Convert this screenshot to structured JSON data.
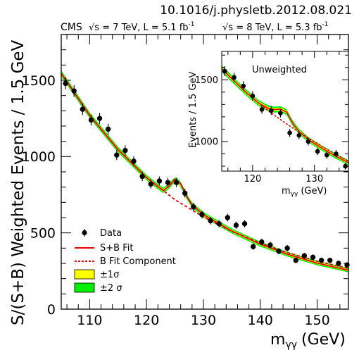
{
  "header": {
    "doi": "10.1016/j.physletb.2012.08.021",
    "experiment": "CMS",
    "energy_7": "√s = 7 TeV, L = 5.1 fb",
    "energy_8": "√s = 8 TeV, L = 5.3 fb",
    "lumi_exp": "-1"
  },
  "chart_data": [
    {
      "type": "scatter",
      "panel": "main",
      "xlabel": "m",
      "xlabel_sub": "γγ",
      "xlabel_unit": "(GeV)",
      "ylabel": "S/(S+B) Weighted Events / 1.5 GeV",
      "xlim": [
        105,
        155.5
      ],
      "ylim": [
        0,
        1800
      ],
      "xticks": [
        110,
        120,
        130,
        140,
        150
      ],
      "yticks": [
        0,
        500,
        1000,
        1500
      ],
      "grid": false,
      "legend_position": "bottom-left",
      "legend": [
        {
          "label": "Data",
          "kind": "marker"
        },
        {
          "label": "S+B Fit",
          "kind": "solid-line",
          "color": "#e60000"
        },
        {
          "label": "B Fit Component",
          "kind": "dashed-line",
          "color": "#e60000"
        },
        {
          "label": "±1σ",
          "kind": "band",
          "color": "#ffff00"
        },
        {
          "label": "±2 σ",
          "kind": "band",
          "color": "#00ee00"
        }
      ],
      "series": [
        {
          "name": "Data",
          "x": [
            105.75,
            107.25,
            108.75,
            110.25,
            111.75,
            113.25,
            114.75,
            116.25,
            117.75,
            119.25,
            120.75,
            122.25,
            123.75,
            125.25,
            126.75,
            128.25,
            129.75,
            131.25,
            132.75,
            134.25,
            135.75,
            137.25,
            138.75,
            140.25,
            141.75,
            143.25,
            144.75,
            146.25,
            147.75,
            149.25,
            150.75,
            152.25,
            153.75,
            155.25
          ],
          "y": [
            1480,
            1430,
            1310,
            1240,
            1250,
            1180,
            1010,
            1040,
            970,
            870,
            820,
            840,
            830,
            830,
            760,
            670,
            620,
            580,
            560,
            600,
            550,
            560,
            410,
            440,
            420,
            380,
            400,
            320,
            350,
            340,
            320,
            320,
            300,
            290
          ],
          "yerr": [
            40,
            38,
            37,
            36,
            36,
            35,
            33,
            33,
            32,
            31,
            30,
            30,
            30,
            30,
            29,
            27,
            26,
            25,
            24,
            25,
            24,
            24,
            21,
            22,
            21,
            20,
            21,
            18,
            19,
            19,
            18,
            18,
            18,
            17
          ]
        },
        {
          "name": "S+B Fit",
          "x": [
            105,
            110,
            115,
            120,
            122,
            123,
            124,
            125,
            126,
            127,
            128,
            130,
            135,
            140,
            145,
            150,
            155.5
          ],
          "y": [
            1545,
            1270,
            1045,
            862,
            803,
            778,
            808,
            852,
            822,
            742,
            683,
            619,
            512,
            426,
            357,
            302,
            255
          ]
        },
        {
          "name": "B Fit Component",
          "x": [
            105,
            110,
            115,
            120,
            125,
            130,
            135,
            140,
            145,
            150,
            155.5
          ],
          "y": [
            1545,
            1270,
            1045,
            862,
            717,
            604,
            510,
            433,
            368,
            315,
            268
          ]
        }
      ]
    },
    {
      "type": "scatter",
      "panel": "inset",
      "title": "Unweighted",
      "xlabel": "m",
      "xlabel_sub": "γγ",
      "xlabel_unit": "(GeV)",
      "ylabel": "Events / 1.5 GeV",
      "xlim": [
        115,
        135.5
      ],
      "ylim": [
        760,
        1730
      ],
      "xticks": [
        120,
        130
      ],
      "yticks": [
        1000,
        1500
      ],
      "series": [
        {
          "name": "Data",
          "x": [
            115.5,
            117,
            118.5,
            120,
            121.5,
            123,
            124.5,
            126,
            127.5,
            129,
            130.5,
            132,
            133.5,
            135
          ],
          "y": [
            1570,
            1520,
            1450,
            1370,
            1260,
            1250,
            1230,
            1070,
            1050,
            1000,
            920,
            890,
            900,
            800
          ],
          "yerr": [
            40,
            39,
            38,
            37,
            35,
            35,
            35,
            33,
            32,
            32,
            30,
            30,
            30,
            28
          ]
        },
        {
          "name": "S+B Fit",
          "x": [
            115,
            117,
            119,
            121,
            122.5,
            123.5,
            124.5,
            125.5,
            126.5,
            127.5,
            129,
            131,
            133,
            135.5
          ],
          "y": [
            1590,
            1490,
            1395,
            1310,
            1270,
            1258,
            1262,
            1238,
            1146,
            1082,
            1015,
            952,
            893,
            828
          ],
          "band1": [
            14,
            13,
            12,
            12,
            12,
            12,
            12,
            12,
            11,
            11,
            11,
            11,
            10,
            10
          ],
          "band2": [
            28,
            26,
            25,
            24,
            24,
            24,
            24,
            23,
            22,
            22,
            21,
            21,
            20,
            20
          ]
        },
        {
          "name": "B Fit Component",
          "x": [
            115,
            117,
            119,
            121,
            123,
            125,
            127,
            129,
            131,
            133,
            135.5
          ],
          "y": [
            1590,
            1490,
            1395,
            1310,
            1232,
            1160,
            1092,
            1028,
            968,
            910,
            840
          ]
        }
      ]
    }
  ]
}
